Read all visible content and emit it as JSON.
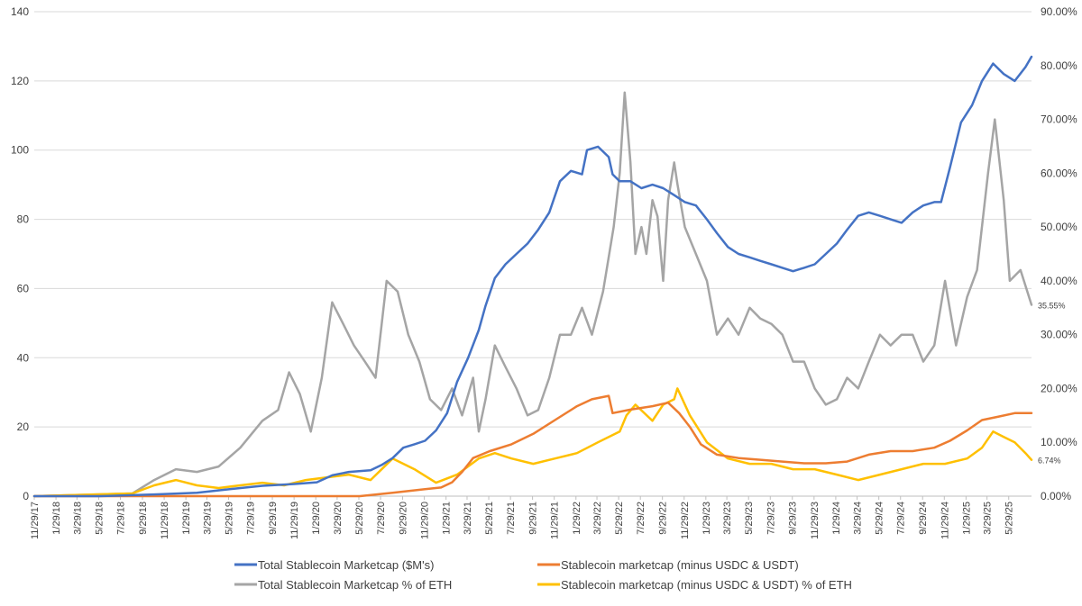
{
  "chart_data": {
    "type": "line",
    "title": "",
    "xlabel": "",
    "ylabel": "",
    "y2label": "",
    "grid": true,
    "legend_position": "bottom",
    "x_range": [
      "2017-11-29",
      "2025-08-01"
    ],
    "ylim": [
      0,
      140
    ],
    "y2lim": [
      0,
      90
    ],
    "y_ticks": [
      0,
      20,
      40,
      60,
      80,
      100,
      120,
      140
    ],
    "y_tick_labels": [
      "0",
      "20",
      "40",
      "60",
      "80",
      "100",
      "120",
      "140"
    ],
    "y2_ticks": [
      0,
      10,
      20,
      30,
      40,
      50,
      60,
      70,
      80,
      90
    ],
    "y2_tick_labels": [
      "0.00%",
      "10.00%",
      "20.00%",
      "30.00%",
      "40.00%",
      "50.00%",
      "60.00%",
      "70.00%",
      "80.00%",
      "90.00%"
    ],
    "x_ticks": [
      "2017-11-29",
      "2018-01-29",
      "2018-03-29",
      "2018-05-29",
      "2018-07-29",
      "2018-09-29",
      "2018-11-29",
      "2019-01-29",
      "2019-03-29",
      "2019-05-29",
      "2019-07-29",
      "2019-09-29",
      "2019-11-29",
      "2020-01-29",
      "2020-03-29",
      "2020-05-29",
      "2020-07-29",
      "2020-09-29",
      "2020-11-29",
      "2021-01-29",
      "2021-03-29",
      "2021-05-29",
      "2021-07-29",
      "2021-09-29",
      "2021-11-29",
      "2022-01-29",
      "2022-03-29",
      "2022-05-29",
      "2022-07-29",
      "2022-09-29",
      "2022-11-29",
      "2023-01-29",
      "2023-03-29",
      "2023-05-29",
      "2023-07-29",
      "2023-09-29",
      "2023-11-29",
      "2024-01-29",
      "2024-03-29",
      "2024-05-29",
      "2024-07-29",
      "2024-09-29",
      "2024-11-29",
      "2025-01-29",
      "2025-03-29",
      "2025-05-29"
    ],
    "x_tick_labels": [
      "11/29/17",
      "1/29/18",
      "3/29/18",
      "5/29/18",
      "7/29/18",
      "9/29/18",
      "11/29/18",
      "1/29/19",
      "3/29/19",
      "5/29/19",
      "7/29/19",
      "9/29/19",
      "11/29/19",
      "1/29/20",
      "3/29/20",
      "5/29/20",
      "7/29/20",
      "9/29/20",
      "11/29/20",
      "1/29/21",
      "3/29/21",
      "5/29/21",
      "7/29/21",
      "9/29/21",
      "11/29/21",
      "1/29/22",
      "3/29/22",
      "5/29/22",
      "7/29/22",
      "9/29/22",
      "11/29/22",
      "1/29/23",
      "3/29/23",
      "5/29/23",
      "7/29/23",
      "9/29/23",
      "11/29/23",
      "1/29/24",
      "3/29/24",
      "5/29/24",
      "7/29/24",
      "9/29/24",
      "11/29/24",
      "1/29/25",
      "3/29/25",
      "5/29/25"
    ],
    "series": [
      {
        "name": "Total Stablecoin Marketcap ($M's)",
        "axis": "left",
        "color": "#4472C4",
        "x": [
          "2017-11-29",
          "2018-06-01",
          "2018-11-01",
          "2019-03-01",
          "2019-06-01",
          "2019-09-01",
          "2019-12-01",
          "2020-02-01",
          "2020-03-15",
          "2020-05-01",
          "2020-07-01",
          "2020-08-01",
          "2020-09-01",
          "2020-10-01",
          "2020-11-01",
          "2020-12-01",
          "2021-01-01",
          "2021-02-01",
          "2021-03-01",
          "2021-04-01",
          "2021-05-01",
          "2021-05-20",
          "2021-06-15",
          "2021-07-15",
          "2021-08-15",
          "2021-09-15",
          "2021-10-15",
          "2021-11-15",
          "2021-12-15",
          "2022-01-15",
          "2022-02-15",
          "2022-03-01",
          "2022-04-01",
          "2022-05-01",
          "2022-05-12",
          "2022-06-01",
          "2022-07-01",
          "2022-08-01",
          "2022-09-01",
          "2022-10-01",
          "2022-11-01",
          "2022-12-01",
          "2023-01-01",
          "2023-02-01",
          "2023-03-01",
          "2023-04-01",
          "2023-05-01",
          "2023-06-01",
          "2023-07-01",
          "2023-08-01",
          "2023-09-01",
          "2023-10-01",
          "2023-11-01",
          "2023-12-01",
          "2024-01-01",
          "2024-02-01",
          "2024-03-01",
          "2024-04-01",
          "2024-05-01",
          "2024-06-01",
          "2024-07-01",
          "2024-08-01",
          "2024-09-01",
          "2024-10-01",
          "2024-11-01",
          "2024-11-20",
          "2024-12-15",
          "2025-01-15",
          "2025-02-15",
          "2025-03-15",
          "2025-04-15",
          "2025-05-15",
          "2025-06-15",
          "2025-07-15",
          "2025-08-01"
        ],
        "values": [
          0,
          0,
          0.5,
          1,
          2,
          3,
          3.5,
          4,
          6,
          7,
          7.5,
          9,
          11,
          14,
          15,
          16,
          19,
          24,
          33,
          40,
          48,
          55,
          63,
          67,
          70,
          73,
          77,
          82,
          91,
          94,
          93,
          100,
          101,
          98,
          93,
          91,
          91,
          89,
          90,
          89,
          87,
          85,
          84,
          80,
          76,
          72,
          70,
          69,
          68,
          67,
          66,
          65,
          66,
          67,
          70,
          73,
          77,
          81,
          82,
          81,
          80,
          79,
          82,
          84,
          85,
          85,
          95,
          108,
          113,
          120,
          125,
          122,
          120,
          124,
          127
        ]
      },
      {
        "name": "Stablecoin marketcap (minus USDC & USDT)",
        "axis": "left",
        "color": "#ED7D31",
        "x": [
          "2017-11-29",
          "2019-01-01",
          "2020-06-01",
          "2020-09-01",
          "2020-12-01",
          "2021-01-15",
          "2021-02-15",
          "2021-03-15",
          "2021-04-15",
          "2021-06-01",
          "2021-08-01",
          "2021-10-01",
          "2021-12-01",
          "2022-02-01",
          "2022-03-15",
          "2022-05-01",
          "2022-05-12",
          "2022-07-01",
          "2022-09-01",
          "2022-10-15",
          "2022-11-15",
          "2022-12-15",
          "2023-01-15",
          "2023-03-01",
          "2023-05-01",
          "2023-07-01",
          "2023-09-01",
          "2023-11-01",
          "2024-01-01",
          "2024-03-01",
          "2024-05-01",
          "2024-07-01",
          "2024-09-01",
          "2024-11-01",
          "2024-12-15",
          "2025-02-01",
          "2025-03-15",
          "2025-05-01",
          "2025-06-15",
          "2025-08-01"
        ],
        "values": [
          0,
          0,
          0,
          1,
          2,
          2.5,
          4,
          7,
          11,
          13,
          15,
          18,
          22,
          26,
          28,
          29,
          24,
          25,
          26,
          27,
          24,
          20,
          15,
          12,
          11,
          10.5,
          10,
          9.5,
          9.5,
          10,
          12,
          13,
          13,
          14,
          16,
          19,
          22,
          23,
          24,
          24
        ]
      },
      {
        "name": "Total Stablecoin Marketcap % of ETH",
        "axis": "right",
        "color": "#A5A5A5",
        "x": [
          "2017-11-29",
          "2018-09-01",
          "2018-11-01",
          "2019-01-01",
          "2019-03-01",
          "2019-05-01",
          "2019-07-01",
          "2019-09-01",
          "2019-10-15",
          "2019-11-15",
          "2019-12-15",
          "2020-01-15",
          "2020-02-15",
          "2020-03-15",
          "2020-04-15",
          "2020-05-15",
          "2020-06-15",
          "2020-07-15",
          "2020-08-15",
          "2020-09-15",
          "2020-10-15",
          "2020-11-15",
          "2020-12-15",
          "2021-01-15",
          "2021-02-15",
          "2021-03-15",
          "2021-04-15",
          "2021-05-01",
          "2021-05-20",
          "2021-06-15",
          "2021-07-15",
          "2021-08-15",
          "2021-09-15",
          "2021-10-15",
          "2021-11-15",
          "2021-12-15",
          "2022-01-15",
          "2022-02-15",
          "2022-03-15",
          "2022-04-15",
          "2022-05-15",
          "2022-06-01",
          "2022-06-15",
          "2022-07-01",
          "2022-07-15",
          "2022-08-01",
          "2022-08-15",
          "2022-09-01",
          "2022-09-15",
          "2022-10-01",
          "2022-10-15",
          "2022-11-01",
          "2022-11-10",
          "2022-12-01",
          "2023-01-01",
          "2023-02-01",
          "2023-03-01",
          "2023-04-01",
          "2023-05-01",
          "2023-06-01",
          "2023-07-01",
          "2023-08-01",
          "2023-09-01",
          "2023-10-01",
          "2023-11-01",
          "2023-12-01",
          "2024-01-01",
          "2024-02-01",
          "2024-03-01",
          "2024-04-01",
          "2024-05-01",
          "2024-06-01",
          "2024-07-01",
          "2024-08-01",
          "2024-09-01",
          "2024-10-01",
          "2024-11-01",
          "2024-12-01",
          "2025-01-01",
          "2025-02-01",
          "2025-03-01",
          "2025-04-01",
          "2025-04-20",
          "2025-05-15",
          "2025-06-01",
          "2025-07-01",
          "2025-08-01"
        ],
        "values": [
          0,
          0.5,
          3,
          5,
          4.5,
          5.5,
          9,
          14,
          16,
          23,
          19,
          12,
          22,
          36,
          32,
          28,
          25,
          22,
          40,
          38,
          30,
          25,
          18,
          16,
          20,
          15,
          22,
          12,
          18,
          28,
          24,
          20,
          15,
          16,
          22,
          30,
          30,
          35,
          30,
          38,
          50,
          60,
          75,
          62,
          45,
          50,
          45,
          55,
          52,
          40,
          55,
          62,
          58,
          50,
          45,
          40,
          30,
          33,
          30,
          35,
          33,
          32,
          30,
          25,
          25,
          20,
          17,
          18,
          22,
          20,
          25,
          30,
          28,
          30,
          30,
          25,
          28,
          40,
          28,
          37,
          42,
          60,
          70,
          55,
          40,
          42,
          35.55
        ]
      },
      {
        "name": "Stablecoin marketcap (minus USDC & USDT) % of ETH",
        "axis": "right",
        "color": "#FFC000",
        "x": [
          "2017-11-29",
          "2018-09-01",
          "2018-11-01",
          "2019-01-01",
          "2019-03-01",
          "2019-05-01",
          "2019-07-01",
          "2019-09-01",
          "2019-11-01",
          "2020-01-01",
          "2020-03-01",
          "2020-05-01",
          "2020-07-01",
          "2020-09-01",
          "2020-11-01",
          "2021-01-01",
          "2021-03-01",
          "2021-05-01",
          "2021-06-15",
          "2021-08-01",
          "2021-10-01",
          "2021-12-01",
          "2022-02-01",
          "2022-04-01",
          "2022-06-01",
          "2022-06-20",
          "2022-07-15",
          "2022-09-01",
          "2022-10-01",
          "2022-11-01",
          "2022-11-10",
          "2022-12-15",
          "2023-02-01",
          "2023-04-01",
          "2023-06-01",
          "2023-08-01",
          "2023-10-01",
          "2023-12-01",
          "2024-02-01",
          "2024-04-01",
          "2024-06-01",
          "2024-08-01",
          "2024-10-01",
          "2024-12-01",
          "2025-02-01",
          "2025-03-15",
          "2025-04-15",
          "2025-05-15",
          "2025-06-15",
          "2025-07-15",
          "2025-08-01"
        ],
        "values": [
          0,
          0.5,
          2,
          3,
          2,
          1.5,
          2,
          2.5,
          2,
          3,
          3.5,
          4,
          3,
          7,
          5,
          2.5,
          4,
          7,
          8,
          7,
          6,
          7,
          8,
          10,
          12,
          15,
          17,
          14,
          17,
          18,
          20,
          15,
          10,
          7,
          6,
          6,
          5,
          5,
          4,
          3,
          4,
          5,
          6,
          6,
          7,
          9,
          12,
          11,
          10,
          8,
          6.74
        ]
      }
    ],
    "annotations": [
      "35.55%",
      "6.74%"
    ]
  }
}
